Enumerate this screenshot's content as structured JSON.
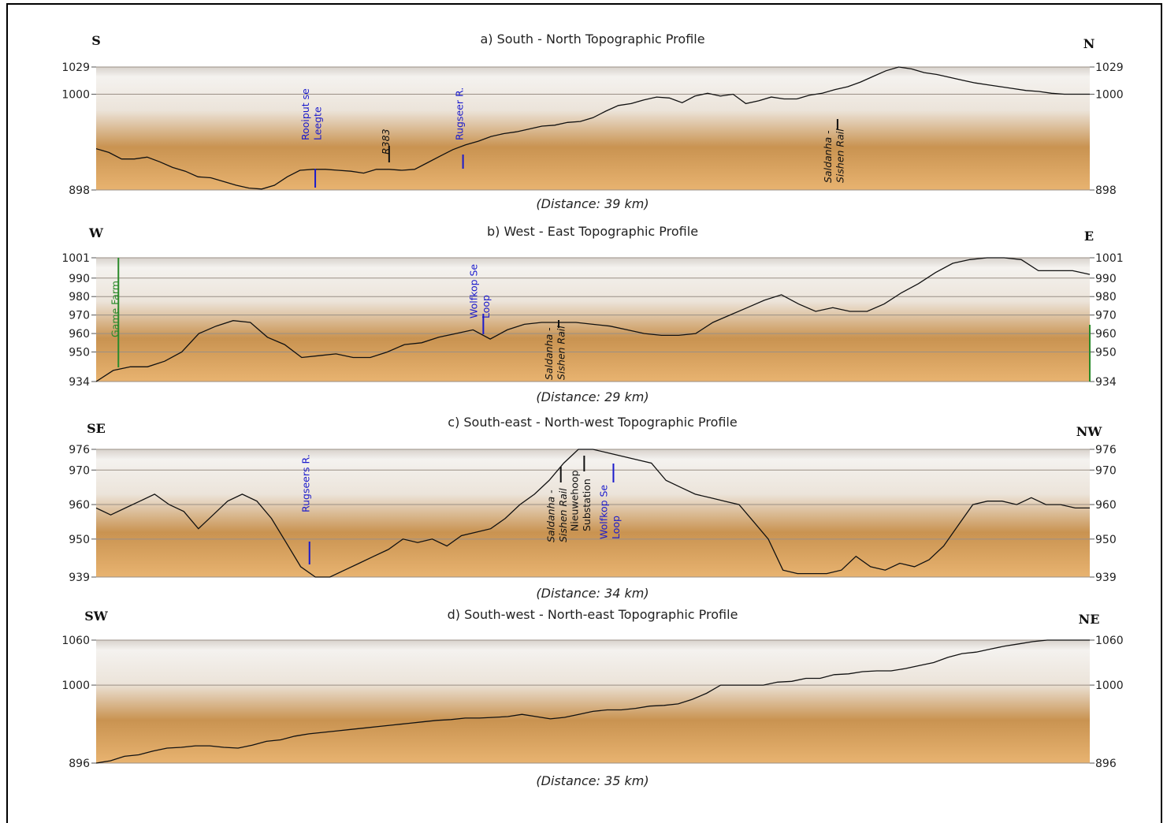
{
  "chart_data": [
    {
      "type": "line",
      "title": "a) South - North Topographic Profile",
      "subtitle": "(Distance: 39 km)",
      "left_direction": "S",
      "right_direction": "N",
      "y_ticks": [
        898,
        1000,
        1029
      ],
      "ylim": [
        898,
        1029
      ],
      "xlim": [
        0,
        39
      ],
      "series": [
        {
          "x": [
            0,
            0.5,
            1,
            1.5,
            2,
            2.5,
            3,
            3.5,
            4,
            4.5,
            5,
            5.5,
            6,
            6.5,
            7,
            7.5,
            8,
            8.5,
            9,
            9.5,
            10,
            10.5,
            11,
            11.5,
            12,
            12.5,
            13,
            13.5,
            14,
            14.5,
            15,
            15.5,
            16,
            16.5,
            17,
            17.5,
            18,
            18.5,
            19,
            19.5,
            20,
            20.5,
            21,
            21.5,
            22,
            22.5,
            23,
            23.5,
            24,
            24.5,
            25,
            25.5,
            26,
            26.5,
            27,
            27.5,
            28,
            28.5,
            29,
            29.5,
            30,
            30.5,
            31,
            31.5,
            32,
            32.5,
            33,
            33.5,
            34,
            34.5,
            35,
            35.5,
            36,
            36.5,
            37,
            37.5,
            38,
            38.5,
            39
          ],
          "y": [
            942,
            938,
            931,
            931,
            933,
            928,
            922,
            918,
            912,
            911,
            907,
            903,
            900,
            899,
            903,
            912,
            919,
            920,
            920,
            919,
            918,
            916,
            920,
            920,
            919,
            920,
            927,
            934,
            941,
            946,
            950,
            955,
            958,
            960,
            963,
            966,
            967,
            970,
            971,
            975,
            982,
            988,
            990,
            994,
            997,
            996,
            991,
            998,
            1001,
            998,
            1000,
            990,
            993,
            997,
            995,
            995,
            999,
            1001,
            1005,
            1008,
            1013,
            1019,
            1025,
            1029,
            1027,
            1023,
            1021,
            1018,
            1015,
            1012,
            1010,
            1008,
            1006,
            1004,
            1003,
            1001,
            1000,
            1000,
            1000
          ],
          "name": ""
        }
      ],
      "annotations": [
        {
          "label": "Rooiput se",
          "label2": "Leegte",
          "x": 8.6,
          "color": "#1a1acc"
        },
        {
          "label": "R383",
          "label2": "",
          "x": 11.5,
          "color": "#111111"
        },
        {
          "label": "Rugseer R.",
          "label2": "",
          "x": 14.4,
          "color": "#1a1acc"
        },
        {
          "label": "Saldanha -",
          "label2": "Sishen Rail",
          "x": 29.1,
          "color": "#111111"
        }
      ]
    },
    {
      "type": "line",
      "title": "b) West - East Topographic Profile",
      "subtitle": "(Distance: 29 km)",
      "left_direction": "W",
      "right_direction": "E",
      "y_ticks": [
        934,
        950,
        960,
        970,
        980,
        990,
        1001
      ],
      "ylim": [
        934,
        1001
      ],
      "xlim": [
        0,
        29
      ],
      "series": [
        {
          "x": [
            0,
            0.5,
            1,
            1.5,
            2,
            2.5,
            3,
            3.5,
            4,
            4.5,
            5,
            5.5,
            6,
            6.5,
            7,
            7.5,
            8,
            8.5,
            9,
            9.5,
            10,
            10.5,
            11,
            11.5,
            12,
            12.5,
            13,
            13.5,
            14,
            14.5,
            15,
            15.5,
            16,
            16.5,
            17,
            17.5,
            18,
            18.5,
            19,
            19.5,
            20,
            20.5,
            21,
            21.5,
            22,
            22.5,
            23,
            23.5,
            24,
            24.5,
            25,
            25.5,
            26,
            26.5,
            27,
            27.5,
            28,
            28.5,
            29
          ],
          "y": [
            934,
            940,
            942,
            942,
            945,
            950,
            960,
            964,
            967,
            966,
            958,
            954,
            947,
            948,
            949,
            947,
            947,
            950,
            954,
            955,
            958,
            960,
            962,
            957,
            962,
            965,
            966,
            966,
            966,
            965,
            964,
            962,
            960,
            959,
            959,
            960,
            966,
            970,
            974,
            978,
            981,
            976,
            972,
            974,
            972,
            972,
            976,
            982,
            987,
            993,
            998,
            1000,
            1001,
            1001,
            1000,
            994,
            994,
            994,
            992
          ],
          "name": ""
        }
      ],
      "annotations": [
        {
          "label": "Game Farm",
          "label2": "",
          "x": 0.65,
          "color": "#2a8a2a"
        },
        {
          "label": "Wolfkop Se",
          "label2": "Loop",
          "x": 11.3,
          "color": "#1a1acc"
        },
        {
          "label": "Saldanha -",
          "label2": "Sishen Rail",
          "x": 13.5,
          "color": "#111111"
        }
      ]
    },
    {
      "type": "line",
      "title": "c) South-east - North-west Topographic Profile",
      "subtitle": "(Distance: 34 km)",
      "left_direction": "SE",
      "right_direction": "NW",
      "y_ticks": [
        939,
        950,
        960,
        970,
        976
      ],
      "ylim": [
        939,
        976
      ],
      "xlim": [
        0,
        34
      ],
      "series": [
        {
          "x": [
            0,
            0.5,
            1,
            1.5,
            2,
            2.5,
            3,
            3.5,
            4,
            4.5,
            5,
            5.5,
            6,
            6.5,
            7,
            7.5,
            8,
            8.5,
            9,
            9.5,
            10,
            10.5,
            11,
            11.5,
            12,
            12.5,
            13,
            13.5,
            14,
            14.5,
            15,
            15.5,
            16,
            16.5,
            17,
            17.5,
            18,
            18.5,
            19,
            19.5,
            20,
            20.5,
            21,
            21.5,
            22,
            22.5,
            23,
            23.5,
            24,
            24.5,
            25,
            25.5,
            26,
            26.5,
            27,
            27.5,
            28,
            28.5,
            29,
            29.5,
            30,
            30.5,
            31,
            31.5,
            32,
            32.5,
            33,
            33.5,
            34
          ],
          "y": [
            959,
            957,
            959,
            961,
            963,
            960,
            958,
            953,
            957,
            961,
            963,
            961,
            956,
            949,
            942,
            939,
            939,
            941,
            943,
            945,
            947,
            950,
            949,
            950,
            948,
            951,
            952,
            953,
            956,
            960,
            963,
            967,
            972,
            976,
            976,
            975,
            974,
            973,
            972,
            967,
            965,
            963,
            962,
            961,
            960,
            955,
            950,
            941,
            940,
            940,
            940,
            941,
            945,
            942,
            941,
            943,
            942,
            944,
            948,
            954,
            960,
            961,
            961,
            960,
            962,
            960,
            960,
            959,
            959
          ],
          "name": ""
        }
      ],
      "annotations": [
        {
          "label": "Rugseers R.",
          "label2": "",
          "x": 7.3,
          "color": "#1a1acc"
        },
        {
          "label": "Saldanha -",
          "label2": "Sishen Rail",
          "x": 15.9,
          "color": "#111111"
        },
        {
          "label": "Nieuwehoop",
          "label2": "Substation",
          "x": 16.7,
          "color": "#111111"
        },
        {
          "label": "Wolfkop Se",
          "label2": "Loop",
          "x": 17.7,
          "color": "#1a1acc"
        }
      ]
    },
    {
      "type": "line",
      "title": "d) South-west - North-east Topographic Profile",
      "subtitle": "(Distance: 35 km)",
      "left_direction": "SW",
      "right_direction": "NE",
      "y_ticks": [
        896,
        1000,
        1060
      ],
      "ylim": [
        896,
        1060
      ],
      "xlim": [
        0,
        35
      ],
      "series": [
        {
          "x": [
            0,
            0.5,
            1,
            1.5,
            2,
            2.5,
            3,
            3.5,
            4,
            4.5,
            5,
            5.5,
            6,
            6.5,
            7,
            7.5,
            8,
            8.5,
            9,
            9.5,
            10,
            10.5,
            11,
            11.5,
            12,
            12.5,
            13,
            13.5,
            14,
            14.5,
            15,
            15.5,
            16,
            16.5,
            17,
            17.5,
            18,
            18.5,
            19,
            19.5,
            20,
            20.5,
            21,
            21.5,
            22,
            22.5,
            23,
            23.5,
            24,
            24.5,
            25,
            25.5,
            26,
            26.5,
            27,
            27.5,
            28,
            28.5,
            29,
            29.5,
            30,
            30.5,
            31,
            31.5,
            32,
            32.5,
            33,
            33.5,
            34,
            34.5,
            35
          ],
          "y": [
            896,
            899,
            905,
            907,
            912,
            916,
            917,
            919,
            919,
            917,
            916,
            920,
            925,
            927,
            932,
            935,
            937,
            939,
            941,
            943,
            945,
            947,
            949,
            951,
            953,
            954,
            956,
            956,
            957,
            958,
            961,
            958,
            955,
            957,
            961,
            965,
            967,
            967,
            969,
            972,
            973,
            975,
            981,
            989,
            1000,
            1000,
            1000,
            1000,
            1004,
            1005,
            1009,
            1009,
            1014,
            1015,
            1018,
            1019,
            1019,
            1022,
            1026,
            1030,
            1037,
            1042,
            1044,
            1048,
            1052,
            1055,
            1058,
            1060,
            1060,
            1060,
            1060
          ],
          "name": ""
        }
      ],
      "annotations": []
    }
  ],
  "colors": {
    "band_top": "#f4f2ef",
    "band_mid": "#ece4da",
    "band_low": "#d9a762",
    "band_bottom": "#e8b370",
    "profile_line": "#111111",
    "grid_line": "#9a8f86"
  }
}
